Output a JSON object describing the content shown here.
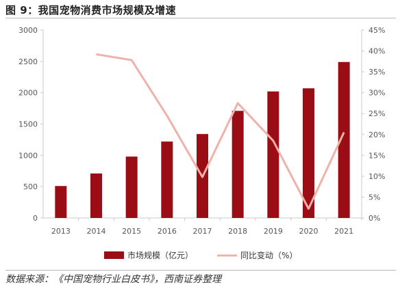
{
  "figure_title": "图 9：我国宠物消费市场规模及增速",
  "source_note": "数据来源：《中国宠物行业白皮书》，西南证券整理",
  "colors": {
    "bar": "#9b0d14",
    "line": "#f0b1a8",
    "axis": "#c8c8c8",
    "tick_text": "#555555"
  },
  "chart_data": {
    "type": "bar",
    "categories": [
      "2013",
      "2014",
      "2015",
      "2016",
      "2017",
      "2018",
      "2019",
      "2020",
      "2021"
    ],
    "series": [
      {
        "name": "市场规模（亿元）",
        "type": "bar",
        "axis": "left",
        "values": [
          510,
          710,
          980,
          1220,
          1340,
          1710,
          2020,
          2070,
          2490
        ]
      },
      {
        "name": "同比变动（%）",
        "type": "line",
        "axis": "right",
        "values": [
          null,
          39.2,
          37.8,
          24.5,
          9.8,
          27.5,
          18.5,
          2.2,
          20.5
        ]
      }
    ],
    "y_left": {
      "ylim": [
        0,
        3000
      ],
      "ticks": [
        "0",
        "500",
        "1000",
        "1500",
        "2000",
        "2500",
        "3000"
      ]
    },
    "y_right": {
      "ylim": [
        0,
        45
      ],
      "ticks": [
        "0%",
        "5%",
        "10%",
        "15%",
        "20%",
        "25%",
        "30%",
        "35%",
        "40%",
        "45%"
      ]
    },
    "grid": false,
    "legend_position": "bottom"
  }
}
